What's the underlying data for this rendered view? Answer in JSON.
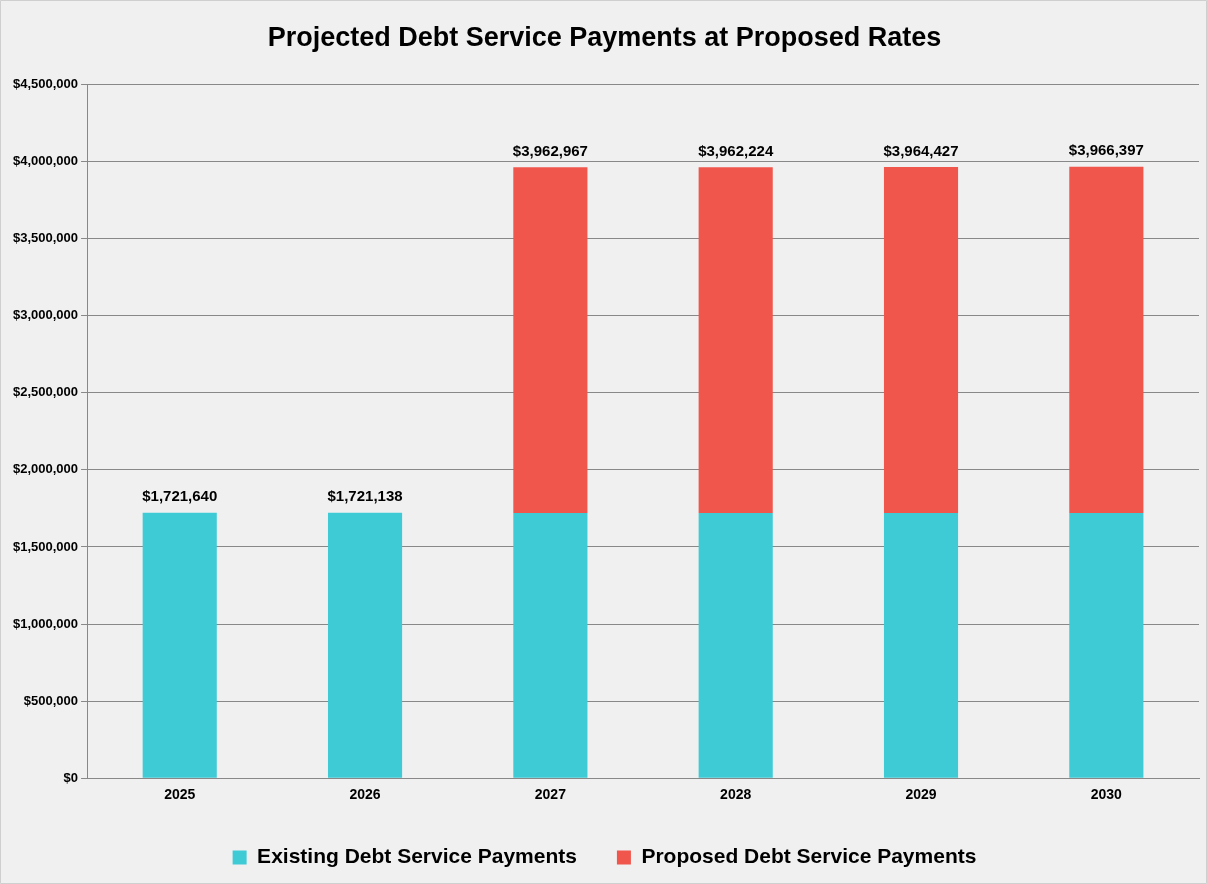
{
  "chart_data": {
    "type": "bar",
    "title": "Projected Debt Service Payments at Proposed Rates",
    "categories": [
      "2025",
      "2026",
      "2027",
      "2028",
      "2029",
      "2030"
    ],
    "series": [
      {
        "name": "Existing Debt Service Payments",
        "color": "#3ecbd6",
        "values": [
          1721640,
          1721138,
          1720000,
          1720000,
          1720000,
          1720000
        ]
      },
      {
        "name": "Proposed Debt Service Payments",
        "color": "#f0564c",
        "values": [
          null,
          null,
          2242967,
          2242224,
          2244427,
          2246397
        ]
      }
    ],
    "stacked": true,
    "totals": [
      "$1,721,640",
      "$1,721,138",
      "$3,962,967",
      "$3,962,224",
      "$3,964,427",
      "$3,966,397"
    ],
    "ylim": [
      0,
      4500000
    ],
    "yticks": [
      {
        "value": 0,
        "label": "$0"
      },
      {
        "value": 500000,
        "label": "$500,000"
      },
      {
        "value": 1000000,
        "label": "$1,000,000"
      },
      {
        "value": 1500000,
        "label": "$1,500,000"
      },
      {
        "value": 2000000,
        "label": "$2,000,000"
      },
      {
        "value": 2500000,
        "label": "$2,500,000"
      },
      {
        "value": 3000000,
        "label": "$3,000,000"
      },
      {
        "value": 3500000,
        "label": "$3,500,000"
      },
      {
        "value": 4000000,
        "label": "$4,000,000"
      },
      {
        "value": 4500000,
        "label": "$4,500,000"
      }
    ],
    "grid": "y",
    "legend": "bottom"
  }
}
